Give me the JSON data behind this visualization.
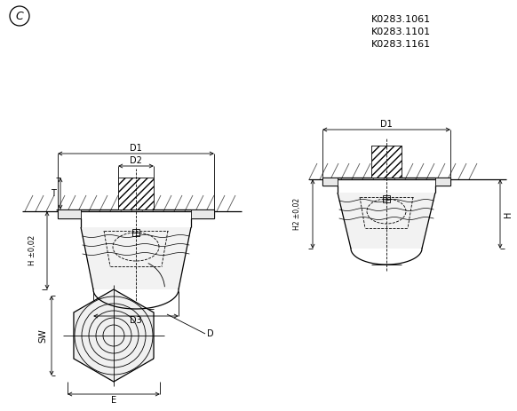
{
  "bg_color": "#ffffff",
  "line_color": "#000000",
  "title_texts": [
    "K0283.1061",
    "K0283.1101",
    "K0283.1161"
  ],
  "circle_label": "C",
  "dim_labels": {
    "D3": "D3",
    "D": "D",
    "H_pm": "H ±0,02",
    "T": "T",
    "D2": "D2",
    "D1": "D1",
    "H2_pm": "H2 ±0,02",
    "H": "H",
    "SW": "SW",
    "E": "E"
  }
}
